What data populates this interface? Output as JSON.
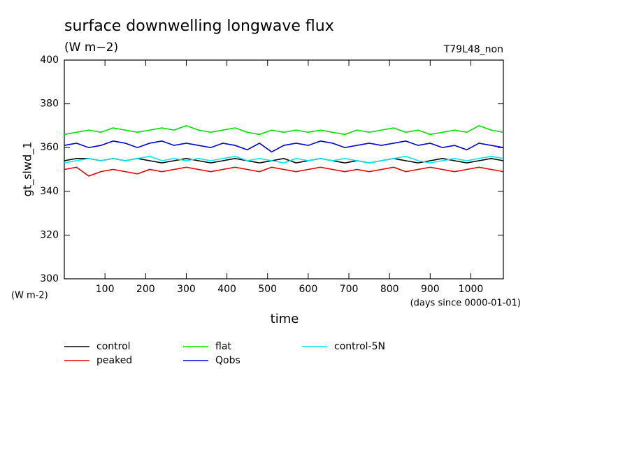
{
  "chart_data": {
    "type": "line",
    "title": "surface downwelling longwave flux",
    "subtitle": "(W m−2)",
    "annotation": "T79L48_non",
    "ylabel": "gt_slwd_1",
    "yunit": "(W m-2)",
    "xlabel": "time",
    "xunit": "(days since 0000-01-01)",
    "x": [
      0,
      30,
      60,
      90,
      120,
      150,
      180,
      210,
      240,
      270,
      300,
      330,
      360,
      390,
      420,
      450,
      480,
      510,
      540,
      570,
      600,
      630,
      660,
      690,
      720,
      750,
      780,
      810,
      840,
      870,
      900,
      930,
      960,
      990,
      1020,
      1050,
      1080
    ],
    "series": [
      {
        "name": "control",
        "color": "#000000",
        "values": [
          354,
          355,
          355,
          354,
          355,
          354,
          355,
          354,
          353,
          354,
          355,
          354,
          353,
          354,
          355,
          354,
          353,
          354,
          355,
          353,
          354,
          355,
          354,
          353,
          354,
          353,
          354,
          355,
          354,
          353,
          354,
          355,
          354,
          353,
          354,
          355,
          354
        ]
      },
      {
        "name": "peaked",
        "color": "#e00000",
        "values": [
          350,
          351,
          347,
          349,
          350,
          349,
          348,
          350,
          349,
          350,
          351,
          350,
          349,
          350,
          351,
          350,
          349,
          351,
          350,
          349,
          350,
          351,
          350,
          349,
          350,
          349,
          350,
          351,
          349,
          350,
          351,
          350,
          349,
          350,
          351,
          350,
          349
        ]
      },
      {
        "name": "flat",
        "color": "#00e000",
        "values": [
          366,
          367,
          368,
          367,
          369,
          368,
          367,
          368,
          369,
          368,
          370,
          368,
          367,
          368,
          369,
          367,
          366,
          368,
          367,
          368,
          367,
          368,
          367,
          366,
          368,
          367,
          368,
          369,
          367,
          368,
          366,
          367,
          368,
          367,
          370,
          368,
          367
        ]
      },
      {
        "name": "Qobs",
        "color": "#0000d0",
        "values": [
          361,
          362,
          360,
          361,
          363,
          362,
          360,
          362,
          363,
          361,
          362,
          361,
          360,
          362,
          361,
          359,
          362,
          358,
          361,
          362,
          361,
          363,
          362,
          360,
          361,
          362,
          361,
          362,
          363,
          361,
          362,
          360,
          361,
          359,
          362,
          361,
          360
        ]
      },
      {
        "name": "control-5N",
        "color": "#00e8e8",
        "values": [
          353,
          354,
          355,
          354,
          355,
          354,
          355,
          356,
          354,
          355,
          354,
          355,
          354,
          355,
          356,
          354,
          355,
          354,
          353,
          355,
          354,
          355,
          354,
          355,
          354,
          353,
          354,
          355,
          356,
          354,
          353,
          354,
          355,
          354,
          355,
          356,
          355
        ]
      }
    ],
    "xlim": [
      0,
      1080
    ],
    "xticks": [
      100,
      200,
      300,
      400,
      500,
      600,
      700,
      800,
      900,
      1000
    ],
    "ylim": [
      300,
      400
    ],
    "yticks": [
      300,
      320,
      340,
      360,
      380,
      400
    ]
  }
}
